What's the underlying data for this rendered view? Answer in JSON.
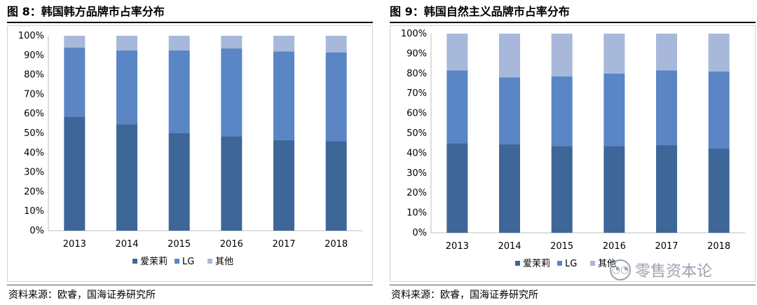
{
  "charts": [
    {
      "figure_title": "图 8：韩国韩方品牌市占率分布",
      "source": "资料来源：欧睿，国海证券研究所"
    },
    {
      "figure_title": "图 9：韩国自然主义品牌市占率分布",
      "source": "资料来源：欧睿，国海证券研究所"
    }
  ],
  "watermark": {
    "text": "零售资本论",
    "icon": "wechat-icon"
  },
  "colors": {
    "series_0": "#3f6699",
    "series_1": "#5a86c6",
    "series_2": "#a7b8da"
  },
  "chart_data": [
    {
      "type": "bar",
      "stacked": true,
      "title": "",
      "categories": [
        "2013",
        "2014",
        "2015",
        "2016",
        "2017",
        "2018"
      ],
      "series": [
        {
          "name": "爱茉莉",
          "values": [
            58.5,
            54.5,
            50,
            48.5,
            46.5,
            46
          ]
        },
        {
          "name": "LG",
          "values": [
            35.5,
            38,
            42.5,
            45,
            45.5,
            45.5
          ]
        },
        {
          "name": "其他",
          "values": [
            6,
            7.5,
            7.5,
            6.5,
            8,
            8.5
          ]
        }
      ],
      "ylim": [
        0,
        100
      ],
      "yticks": [
        "0%",
        "10%",
        "20%",
        "30%",
        "40%",
        "50%",
        "60%",
        "70%",
        "80%",
        "90%",
        "100%"
      ],
      "xlabel": "",
      "ylabel": "",
      "legend_position": "bottom",
      "grid": false
    },
    {
      "type": "bar",
      "stacked": true,
      "title": "",
      "categories": [
        "2013",
        "2014",
        "2015",
        "2016",
        "2017",
        "2018"
      ],
      "series": [
        {
          "name": "爱茉莉",
          "values": [
            45,
            44.5,
            43.5,
            43.5,
            44,
            42.5
          ]
        },
        {
          "name": "LG",
          "values": [
            36.5,
            33.5,
            35,
            36.5,
            37.5,
            38.5
          ]
        },
        {
          "name": "其他",
          "values": [
            18.5,
            22,
            21.5,
            20,
            18.5,
            19
          ]
        }
      ],
      "ylim": [
        0,
        100
      ],
      "yticks": [
        "0%",
        "10%",
        "20%",
        "30%",
        "40%",
        "50%",
        "60%",
        "70%",
        "80%",
        "90%",
        "100%"
      ],
      "xlabel": "",
      "ylabel": "",
      "legend_position": "bottom",
      "grid": false
    }
  ]
}
